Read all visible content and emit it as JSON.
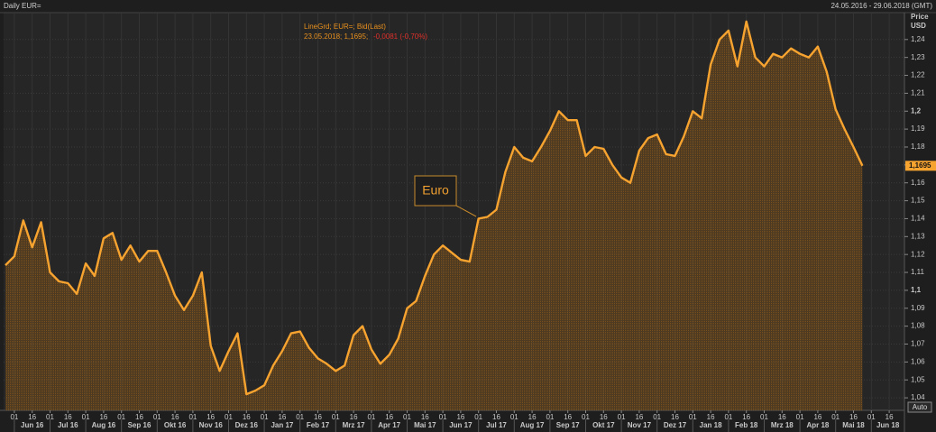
{
  "chart_data": {
    "type": "area",
    "title": "Daily EUR=",
    "date_range": "24.05.2016 - 29.06.2018 (GMT)",
    "y_label": [
      "Price",
      "USD"
    ],
    "legend_text": [
      "LineGrd; EUR=; Bid(Last)",
      "23.05.2018; 1,1695;",
      "-0,0081 (-0,70%)"
    ],
    "annotation": "Euro",
    "auto_button": "Auto",
    "color": "#f7a330",
    "grid": true,
    "last_value_label": "1,1695",
    "months": [
      "Jun 16",
      "Jul 16",
      "Aug 16",
      "Sep 16",
      "Okt 16",
      "Nov 16",
      "Dez 16",
      "Jan 17",
      "Feb 17",
      "Mrz 17",
      "Apr 17",
      "Mai 17",
      "Jun 17",
      "Jul 17",
      "Aug 17",
      "Sep 17",
      "Okt 17",
      "Nov 17",
      "Dez 17",
      "Jan 18",
      "Feb 18",
      "Mrz 18",
      "Apr 18",
      "Mai 18",
      "Jun 18"
    ],
    "categories": [
      null,
      "01",
      null,
      "16",
      null,
      "01",
      null,
      "16",
      null,
      "01",
      null,
      "16",
      null,
      "01",
      null,
      "16",
      null,
      "01",
      null,
      "16",
      null,
      "01",
      null,
      "16",
      null,
      "01",
      null,
      "16",
      null,
      "01",
      null,
      "16",
      null,
      "01",
      null,
      "16",
      null,
      "01",
      null,
      "16",
      null,
      "01",
      null,
      "16",
      null,
      "01",
      null,
      "16",
      null,
      "01",
      null,
      "16",
      null,
      "01",
      null,
      "16",
      null,
      "01",
      null,
      "16",
      null,
      "01",
      null,
      "16",
      null,
      "01",
      null,
      "16",
      null,
      "01",
      null,
      "16",
      null,
      "01",
      null,
      "16",
      null,
      "01",
      null,
      "16",
      null,
      "01",
      null,
      "16",
      null,
      "01",
      null,
      "16",
      null,
      "01",
      null,
      "16",
      null,
      "01",
      null,
      "16",
      null,
      "01",
      null,
      "16",
      null
    ],
    "values": [
      1.114,
      1.119,
      1.139,
      1.124,
      1.138,
      1.11,
      1.105,
      1.104,
      1.098,
      1.115,
      1.108,
      1.129,
      1.132,
      1.117,
      1.125,
      1.116,
      1.122,
      1.122,
      1.11,
      1.097,
      1.089,
      1.097,
      1.11,
      1.069,
      1.055,
      1.066,
      1.076,
      1.042,
      1.044,
      1.047,
      1.058,
      1.066,
      1.076,
      1.077,
      1.068,
      1.062,
      1.059,
      1.055,
      1.058,
      1.075,
      1.08,
      1.067,
      1.059,
      1.064,
      1.073,
      1.09,
      1.094,
      1.108,
      1.12,
      1.125,
      1.121,
      1.117,
      1.116,
      1.14,
      1.141,
      1.145,
      1.166,
      1.18,
      1.174,
      1.172,
      1.18,
      1.189,
      1.2,
      1.195,
      1.195,
      1.175,
      1.18,
      1.179,
      1.17,
      1.163,
      1.16,
      1.178,
      1.185,
      1.187,
      1.176,
      1.175,
      1.186,
      1.2,
      1.196,
      1.226,
      1.24,
      1.245,
      1.225,
      1.25,
      1.23,
      1.225,
      1.232,
      1.23,
      1.235,
      1.232,
      1.23,
      1.236,
      1.222,
      1.201,
      1.19,
      1.18,
      1.1695,
      null,
      null,
      null,
      null
    ],
    "ylim": [
      1.033,
      1.255
    ],
    "yticks": [
      {
        "value": 1.04,
        "label": "1,04"
      },
      {
        "value": 1.05,
        "label": "1,05"
      },
      {
        "value": 1.06,
        "label": "1,06"
      },
      {
        "value": 1.07,
        "label": "1,07"
      },
      {
        "value": 1.08,
        "label": "1,08"
      },
      {
        "value": 1.09,
        "label": "1,09"
      },
      {
        "value": 1.1,
        "label": "1,1"
      },
      {
        "value": 1.11,
        "label": "1,11"
      },
      {
        "value": 1.12,
        "label": "1,12"
      },
      {
        "value": 1.13,
        "label": "1,13"
      },
      {
        "value": 1.14,
        "label": "1,14"
      },
      {
        "value": 1.15,
        "label": "1,15"
      },
      {
        "value": 1.16,
        "label": "1,16"
      },
      {
        "value": 1.17,
        "label": "1,17"
      },
      {
        "value": 1.18,
        "label": "1,18"
      },
      {
        "value": 1.19,
        "label": "1,19"
      },
      {
        "value": 1.2,
        "label": "1,2"
      },
      {
        "value": 1.21,
        "label": "1,21"
      },
      {
        "value": 1.22,
        "label": "1,22"
      },
      {
        "value": 1.23,
        "label": "1,23"
      },
      {
        "value": 1.24,
        "label": "1,24"
      }
    ]
  }
}
